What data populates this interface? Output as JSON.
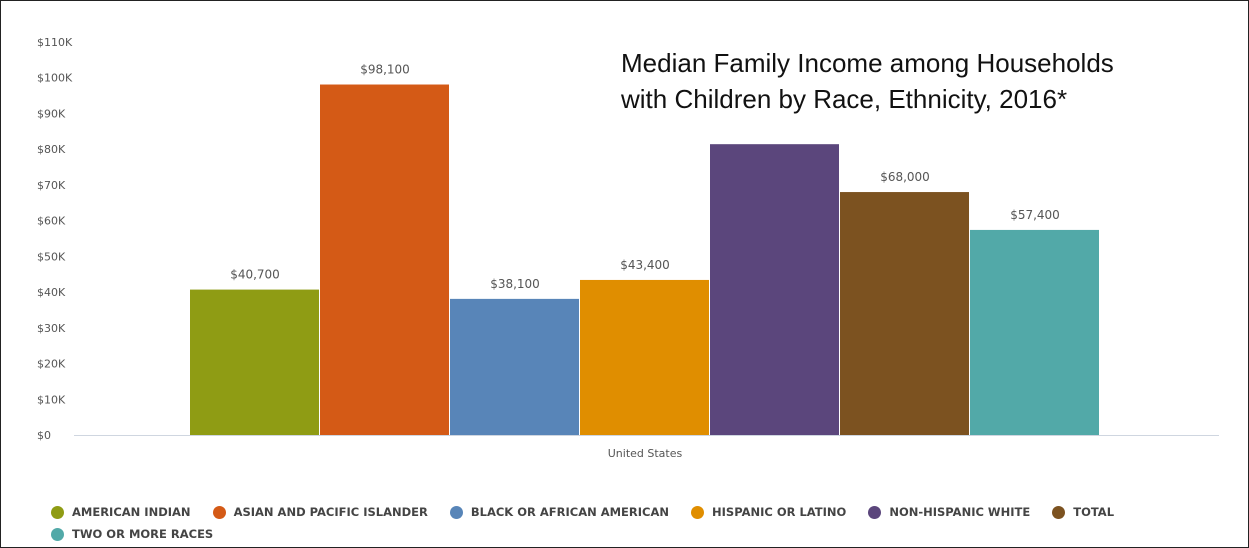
{
  "chart_data": {
    "type": "bar",
    "title_lines": [
      "Median Family Income among Households",
      "with Children by Race, Ethnicity, 2016*"
    ],
    "categories": [
      "United States"
    ],
    "ylim": [
      0,
      110000
    ],
    "yticks": [
      0,
      10000,
      20000,
      30000,
      40000,
      50000,
      60000,
      70000,
      80000,
      90000,
      100000,
      110000
    ],
    "ytick_labels": [
      "$0",
      "$10K",
      "$20K",
      "$30K",
      "$40K",
      "$50K",
      "$60K",
      "$70K",
      "$80K",
      "$90K",
      "$100K",
      "$110K"
    ],
    "series": [
      {
        "name": "American Indian",
        "color": "#8f9c14",
        "value": 40700,
        "data_label": "$40,700"
      },
      {
        "name": "Asian and Pacific Islander",
        "color": "#d45a16",
        "value": 98100,
        "data_label": "$98,100"
      },
      {
        "name": "Black or African American",
        "color": "#5885b8",
        "value": 38100,
        "data_label": "$38,100"
      },
      {
        "name": "Hispanic or Latino",
        "color": "#e08e00",
        "value": 43400,
        "data_label": "$43,400"
      },
      {
        "name": "Non-Hispanic White",
        "color": "#5b467c",
        "value": 81400,
        "data_label": ""
      },
      {
        "name": "Total",
        "color": "#7c5220",
        "value": 68000,
        "data_label": "$68,000"
      },
      {
        "name": "Two or More Races",
        "color": "#52a9a8",
        "value": 57400,
        "data_label": "$57,400"
      }
    ],
    "grid": false,
    "legend_position": "bottom-left"
  }
}
